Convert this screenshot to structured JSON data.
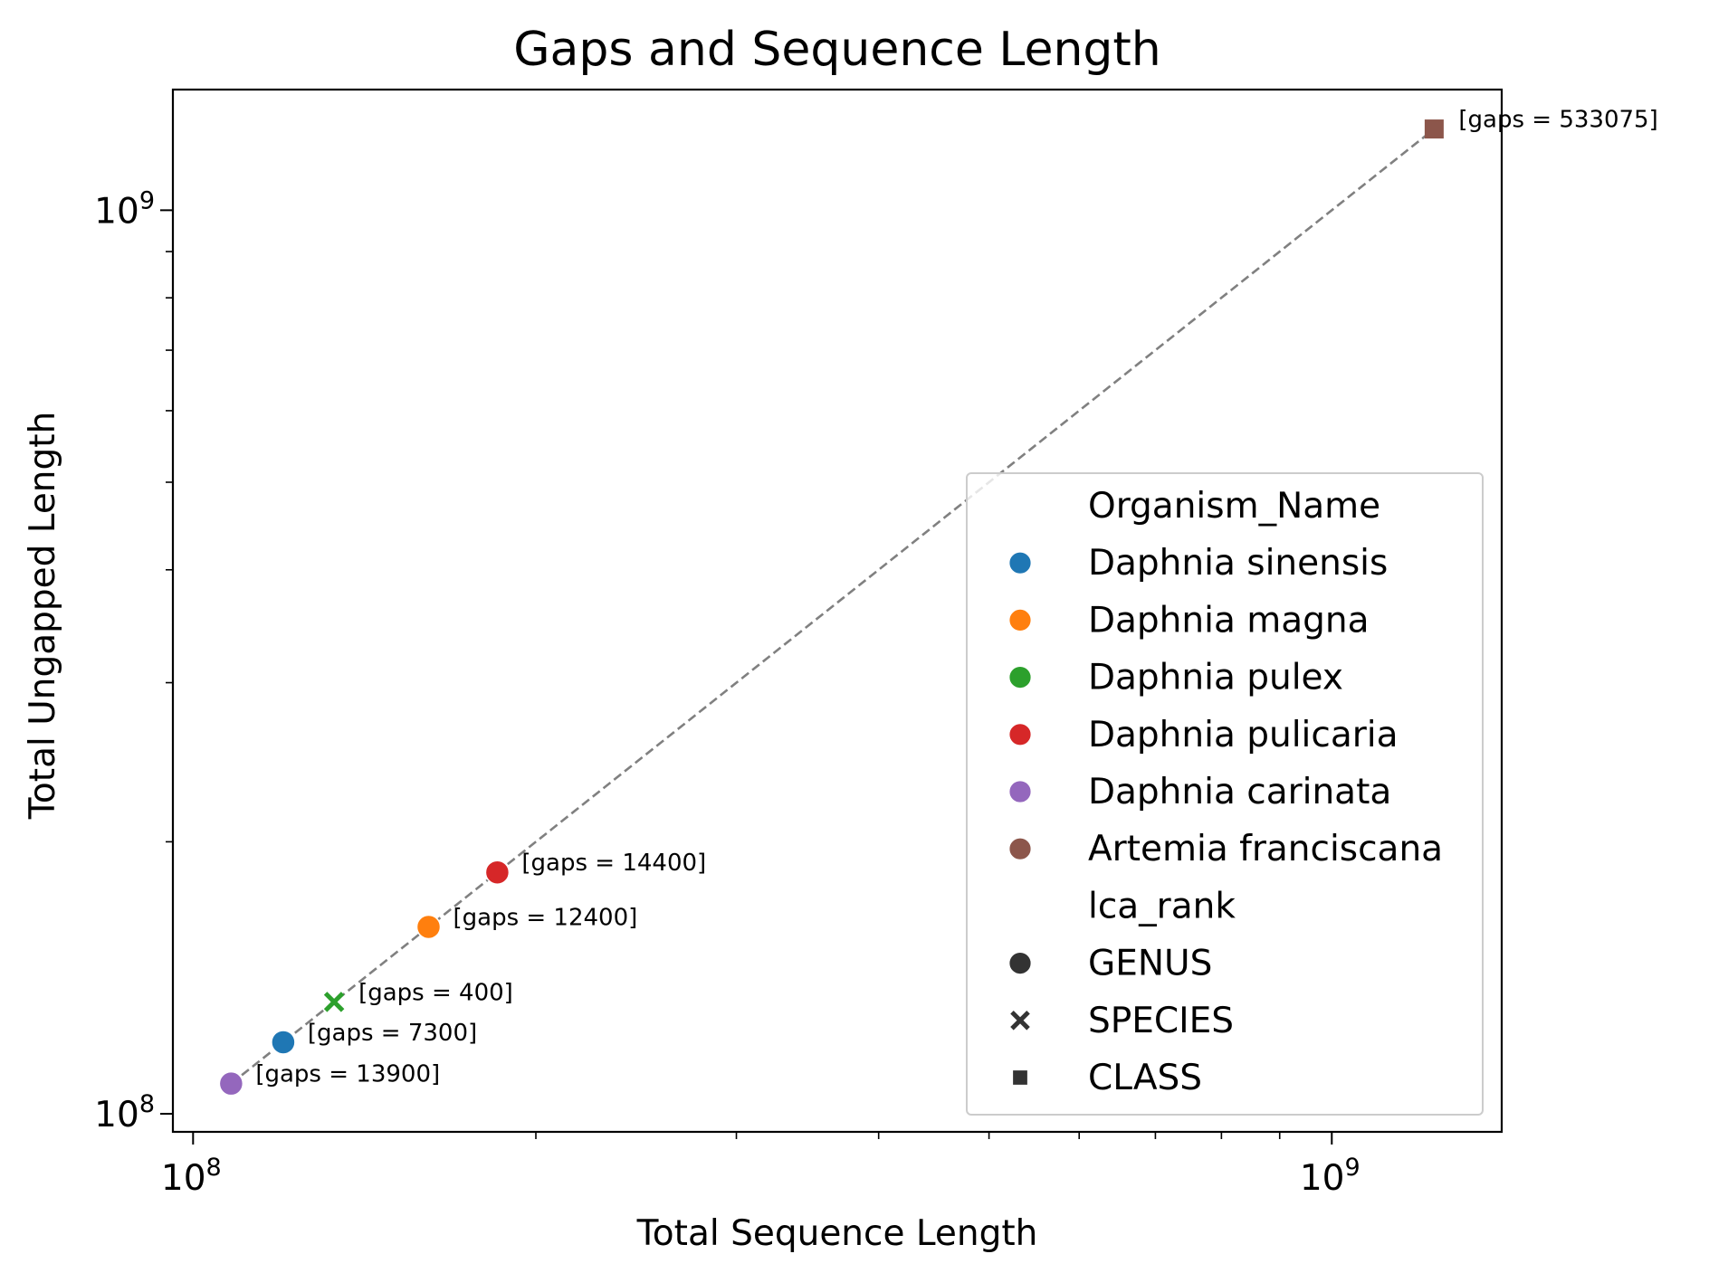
{
  "chart_data": {
    "type": "scatter",
    "title": "Gaps and Sequence Length",
    "xlabel": "Total Sequence Length",
    "ylabel": "Total Ungapped Length",
    "xscale": "log",
    "yscale": "log",
    "xlim": [
      96000000,
      1410000000
    ],
    "ylim": [
      95500000,
      1360000000
    ],
    "x_ticks": [
      {
        "base": "10",
        "exp": "8",
        "value": 100000000
      },
      {
        "base": "10",
        "exp": "9",
        "value": 1000000000
      }
    ],
    "y_ticks": [
      {
        "base": "10",
        "exp": "8",
        "value": 100000000
      },
      {
        "base": "10",
        "exp": "9",
        "value": 1000000000
      }
    ],
    "grid": false,
    "legend_position": "lower-right",
    "reference_line": {
      "style": "dashed",
      "color": "#808080",
      "from": [
        108000000,
        108000000
      ],
      "to": [
        1230000000,
        1230000000
      ]
    },
    "points": [
      {
        "organism": "Daphnia carinata",
        "rank": "GENUS",
        "x": 108000000,
        "y": 108000000,
        "gaps": "[gaps = 13900]",
        "color": "#9467bd",
        "marker": "circle"
      },
      {
        "organism": "Daphnia sinensis",
        "rank": "GENUS",
        "x": 120000000,
        "y": 120000000,
        "gaps": "[gaps = 7300]",
        "color": "#1f77b4",
        "marker": "circle"
      },
      {
        "organism": "Daphnia pulex",
        "rank": "SPECIES",
        "x": 133000000,
        "y": 133000000,
        "gaps": "[gaps = 400]",
        "color": "#2ca02c",
        "marker": "x"
      },
      {
        "organism": "Daphnia magna",
        "rank": "GENUS",
        "x": 161000000,
        "y": 161000000,
        "gaps": "[gaps = 12400]",
        "color": "#ff7f0e",
        "marker": "circle"
      },
      {
        "organism": "Daphnia pulicaria",
        "rank": "GENUS",
        "x": 185000000,
        "y": 185000000,
        "gaps": "[gaps = 14400]",
        "color": "#d62728",
        "marker": "circle"
      },
      {
        "organism": "Artemia franciscana",
        "rank": "CLASS",
        "x": 1230000000,
        "y": 1230000000,
        "gaps": "[gaps = 533075]",
        "color": "#8c564b",
        "marker": "square"
      }
    ],
    "legend": {
      "hue_title": "Organism_Name",
      "hue_entries": [
        {
          "label": "Daphnia sinensis",
          "color": "#1f77b4"
        },
        {
          "label": "Daphnia magna",
          "color": "#ff7f0e"
        },
        {
          "label": "Daphnia pulex",
          "color": "#2ca02c"
        },
        {
          "label": "Daphnia pulicaria",
          "color": "#d62728"
        },
        {
          "label": "Daphnia carinata",
          "color": "#9467bd"
        },
        {
          "label": "Artemia franciscana",
          "color": "#8c564b"
        }
      ],
      "style_title": "lca_rank",
      "style_entries": [
        {
          "label": "GENUS",
          "marker": "circle",
          "color": "#333333"
        },
        {
          "label": "SPECIES",
          "marker": "x",
          "color": "#333333"
        },
        {
          "label": "CLASS",
          "marker": "square",
          "color": "#333333"
        }
      ]
    }
  }
}
